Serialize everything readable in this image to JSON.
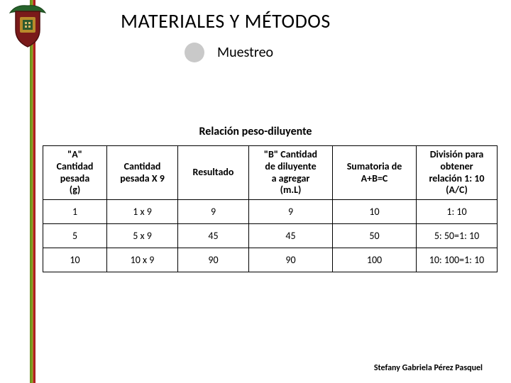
{
  "title": "MATERIALES Y MÉTODOS",
  "subtitle": "Muestreo",
  "section_title": "Relación peso-diluyente",
  "table": {
    "headers": [
      "\"A\"\nCantidad\npesada\n(g)",
      "Cantidad\npesada X 9",
      "Resultado",
      "\"B\" Cantidad\nde diluyente\na agregar\n(m.L)",
      "Sumatoria de\nA+B=C",
      "División para\nobtener\nrelación 1: 10\n(A/C)"
    ],
    "col_widths": [
      "90px",
      "100px",
      "100px",
      "118px",
      "118px",
      "114px"
    ],
    "rows": [
      [
        "1",
        "1 x 9",
        "9",
        "9",
        "10",
        "1: 10"
      ],
      [
        "5",
        "5 x 9",
        "45",
        "45",
        "50",
        "5: 50=1: 10"
      ],
      [
        "10",
        "10 x 9",
        "90",
        "90",
        "100",
        "10: 100=1: 10"
      ]
    ]
  },
  "footer": "Stefany Gabriela Pérez Pasquel",
  "logo": {
    "shield_fill": "#7a1a1a",
    "shield_stroke": "#4d0f0f",
    "center_fill": "#b88a2b",
    "inner_fill": "#2e5a2e",
    "wing_fill": "#26632b",
    "wing_stroke": "#174018"
  }
}
